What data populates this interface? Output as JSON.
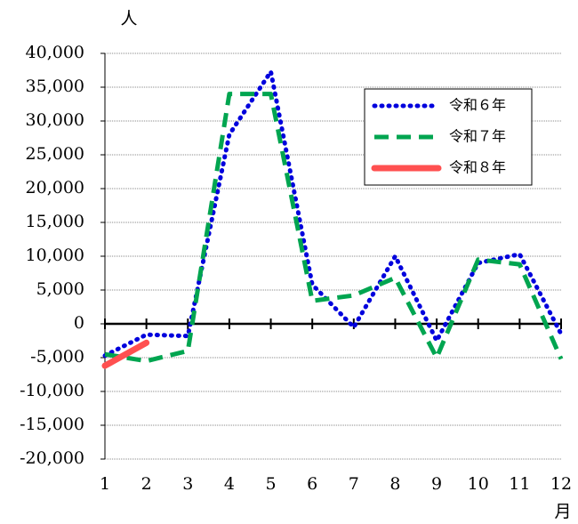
{
  "chart_data": {
    "type": "line",
    "y_unit": "人",
    "x_unit": "月",
    "x": [
      1,
      2,
      3,
      4,
      5,
      6,
      7,
      8,
      9,
      10,
      11,
      12
    ],
    "xlim": [
      1,
      12
    ],
    "xticks": [
      1,
      2,
      3,
      4,
      5,
      6,
      7,
      8,
      9,
      10,
      11,
      12
    ],
    "ylim": [
      -20000,
      40000
    ],
    "yticks": [
      {
        "value": -20000,
        "label": "-20,000"
      },
      {
        "value": -15000,
        "label": "-15,000"
      },
      {
        "value": -10000,
        "label": "-10,000"
      },
      {
        "value": -5000,
        "label": "-5,000"
      },
      0,
      {
        "value": 5000,
        "label": "5,000"
      },
      {
        "value": 10000,
        "label": "10,000"
      },
      {
        "value": 15000,
        "label": "15,000"
      },
      {
        "value": 20000,
        "label": "20,000"
      },
      {
        "value": 25000,
        "label": "25,000"
      },
      {
        "value": 30000,
        "label": "30,000"
      },
      {
        "value": 35000,
        "label": "35,000"
      },
      {
        "value": 40000,
        "label": "40,000"
      }
    ],
    "negative_tick_color": "#ff0000",
    "grid": true,
    "legend": "upper right",
    "series": [
      {
        "name": "令和６年",
        "color": "#0000dd",
        "style": "dotted",
        "values": [
          -4700,
          -1600,
          -1800,
          28000,
          37300,
          5800,
          -500,
          10000,
          -2500,
          9000,
          10300,
          -1500
        ]
      },
      {
        "name": "令和７年",
        "color": "#00a550",
        "style": "dashed",
        "values": [
          -4500,
          -5500,
          -4000,
          34000,
          34000,
          3400,
          4200,
          6800,
          -5000,
          9500,
          8800,
          -5200
        ]
      },
      {
        "name": "令和８年",
        "color": "#ff5050",
        "style": "solid",
        "values": [
          -6200,
          -2800,
          null,
          null,
          null,
          null,
          null,
          null,
          null,
          null,
          null,
          null
        ]
      }
    ]
  }
}
